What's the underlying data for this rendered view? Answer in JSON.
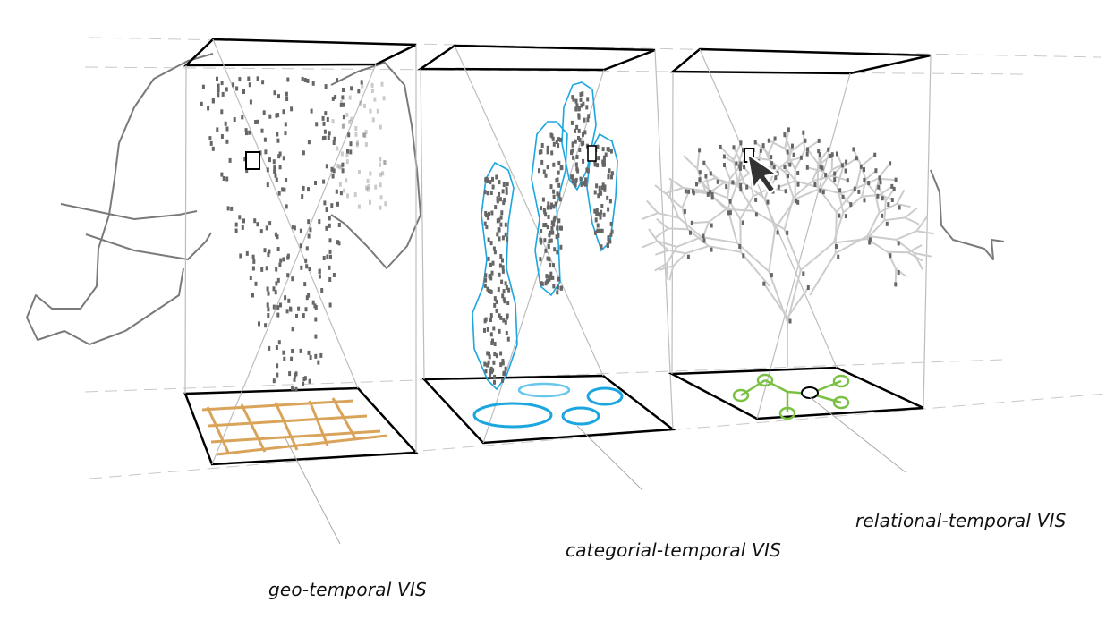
{
  "labels": {
    "geo": "geo-temporal VIS",
    "categorial": "categorial-temporal VIS",
    "relational": "relational-temporal VIS"
  },
  "colors": {
    "outline": "#000000",
    "guide": "#bdbdbd",
    "elephant": "#7a7a7a",
    "points": "#666666",
    "geo_grid": "#d9a45a",
    "categorial": "#1aa6df",
    "categorial_light": "#66c6ee",
    "relational": "#7ac143",
    "tree": "#cccccc"
  },
  "icons": [
    "elephant-icon",
    "mouse-cursor-icon"
  ]
}
